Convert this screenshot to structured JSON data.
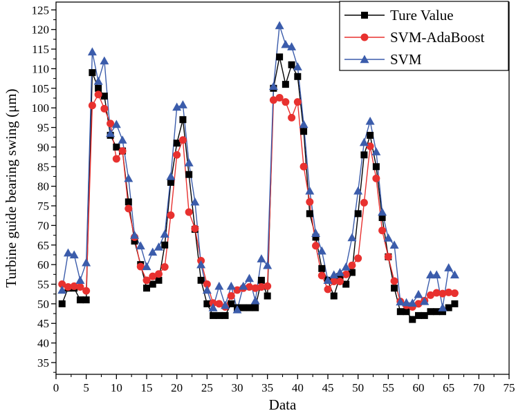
{
  "chart_data": {
    "type": "line",
    "xlabel": "Data",
    "ylabel": "Turbine guide bearing swing (μm)",
    "xlim": [
      0,
      75
    ],
    "ylim": [
      32,
      127
    ],
    "xticks": [
      0,
      5,
      10,
      15,
      20,
      25,
      30,
      35,
      40,
      45,
      50,
      55,
      60,
      65,
      70,
      75
    ],
    "yticks": [
      35,
      40,
      45,
      50,
      55,
      60,
      65,
      70,
      75,
      80,
      85,
      90,
      95,
      100,
      105,
      110,
      115,
      120,
      125
    ],
    "grid": false,
    "legend_position": "top-right",
    "x": [
      1,
      2,
      3,
      4,
      5,
      6,
      7,
      8,
      9,
      10,
      11,
      12,
      13,
      14,
      15,
      16,
      17,
      18,
      19,
      20,
      21,
      22,
      23,
      24,
      25,
      26,
      27,
      28,
      29,
      30,
      31,
      32,
      33,
      34,
      35,
      36,
      37,
      38,
      39,
      40,
      41,
      42,
      43,
      44,
      45,
      46,
      47,
      48,
      49,
      50,
      51,
      52,
      53,
      54,
      55,
      56,
      57,
      58,
      59,
      60,
      61,
      62,
      63,
      64,
      65,
      66
    ],
    "series": [
      {
        "name": "Ture Value",
        "color": "#000000",
        "marker": "square",
        "values": [
          50,
          54,
          54,
          51,
          51,
          109,
          105,
          103,
          93,
          90,
          89,
          76,
          66,
          60,
          54,
          55,
          56,
          65,
          81,
          91,
          97,
          83,
          69,
          56,
          50,
          47,
          47,
          47,
          50,
          49,
          49,
          49,
          49,
          56,
          52,
          105,
          113,
          106,
          111,
          108,
          94,
          73,
          67,
          59,
          56,
          52,
          57,
          55,
          58,
          73,
          88,
          93,
          85,
          72,
          62,
          54,
          48,
          48,
          46,
          47,
          47,
          48,
          48,
          48,
          49,
          50
        ]
      },
      {
        "name": "SVM-AdaBoost",
        "color": "#e8312f",
        "marker": "circle",
        "values": [
          55,
          54.3,
          54.5,
          54.3,
          53.3,
          100.6,
          103.4,
          99.8,
          96,
          87,
          89,
          74.3,
          67,
          59.5,
          56,
          57,
          57.6,
          59.4,
          72.6,
          88,
          91.8,
          73.4,
          69.2,
          61,
          55,
          50.2,
          50,
          49.2,
          52,
          53.5,
          54,
          54.3,
          54,
          54.3,
          54.5,
          102,
          102.6,
          101.5,
          97.5,
          101.5,
          85,
          76,
          64.8,
          57.2,
          53.7,
          55.7,
          55.7,
          57.5,
          59.8,
          61.6,
          75.8,
          90.2,
          82,
          68.7,
          62,
          55.8,
          50.6,
          49.6,
          49.2,
          50,
          50.8,
          52.2,
          52.8,
          52.6,
          52.9,
          52.7
        ]
      },
      {
        "name": "SVM",
        "color": "#3b5cab",
        "marker": "triangle",
        "values": [
          53.5,
          63,
          62.5,
          56,
          60.5,
          114.3,
          106.8,
          112,
          93.5,
          95.8,
          91.8,
          82,
          67.5,
          64.8,
          59.5,
          63.2,
          64.5,
          67.8,
          82.5,
          100.2,
          100.8,
          86,
          76,
          60,
          53.5,
          49,
          54.5,
          49.6,
          54.5,
          48.5,
          54.5,
          56.5,
          50.8,
          61.5,
          59.8,
          105.5,
          121,
          116.2,
          115.6,
          110.5,
          95.8,
          78.8,
          68,
          63.5,
          56,
          57.4,
          58,
          59.4,
          66.9,
          78.8,
          91.2,
          96.6,
          88.8,
          73.4,
          66.8,
          65,
          50.5,
          50.3,
          50.2,
          52.4,
          50.6,
          57.4,
          57.4,
          49,
          59.2,
          57.4
        ]
      }
    ]
  }
}
